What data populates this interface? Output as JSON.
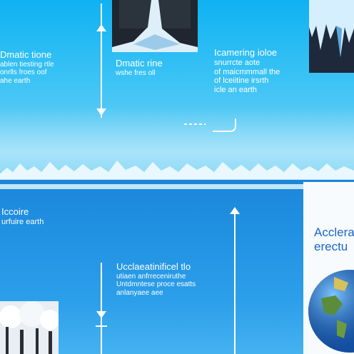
{
  "panels": {
    "left_top": {
      "title": "Dmatic tione",
      "lines": [
        "ablen tiesting rtle",
        "onrlls froes oof",
        "ahe earth"
      ]
    },
    "center_top": {
      "title": "Dmatic rine",
      "lines": [
        "wshe fres oll"
      ]
    },
    "right_top": {
      "title": "Icamering ioloe",
      "lines": [
        "snurrcte aote",
        "of maicmmmall the",
        "of lceiitine irsrth",
        "icle an earth"
      ]
    },
    "left_mid": {
      "title": "Iccoire",
      "lines": [
        "urfuire earth"
      ]
    },
    "center_bottom": {
      "title": "Ucclaeatinificel tlo",
      "lines": [
        "utiaen anfrreceniruthe",
        "Untdmntese proce esatts",
        "anlanyaee aee"
      ]
    },
    "right_bottom": {
      "title": "Acclera",
      "lines": [
        "erectu"
      ]
    }
  },
  "colors": {
    "sky": "#0fb2f2",
    "ocean": "#1e86d9",
    "text_blue": "#1b66c9"
  }
}
